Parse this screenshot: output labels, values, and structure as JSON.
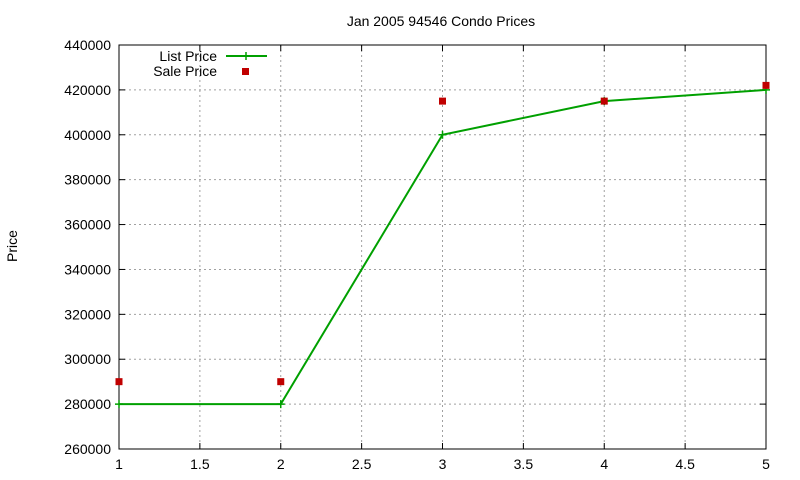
{
  "chart_data": {
    "type": "line",
    "title": "Jan 2005 94546 Condo Prices",
    "xlabel": "",
    "ylabel": "Price",
    "xlim": [
      1,
      5
    ],
    "ylim": [
      260000,
      440000
    ],
    "xticks": [
      "1",
      "1.5",
      "2",
      "2.5",
      "3",
      "3.5",
      "4",
      "4.5",
      "5"
    ],
    "yticks": [
      "260000",
      "280000",
      "300000",
      "320000",
      "340000",
      "360000",
      "380000",
      "400000",
      "420000",
      "440000"
    ],
    "grid": true,
    "legend_position": "top-left",
    "series": [
      {
        "name": "List Price",
        "style": "line-with-plus-markers",
        "color": "#00a000",
        "x": [
          1,
          2,
          3,
          4,
          5
        ],
        "y": [
          280000,
          280000,
          400000,
          415000,
          420000
        ]
      },
      {
        "name": "Sale Price",
        "style": "square-markers",
        "color": "#c00000",
        "x": [
          1,
          2,
          3,
          4,
          5
        ],
        "y": [
          290000,
          290000,
          415000,
          415000,
          422000
        ]
      }
    ]
  }
}
